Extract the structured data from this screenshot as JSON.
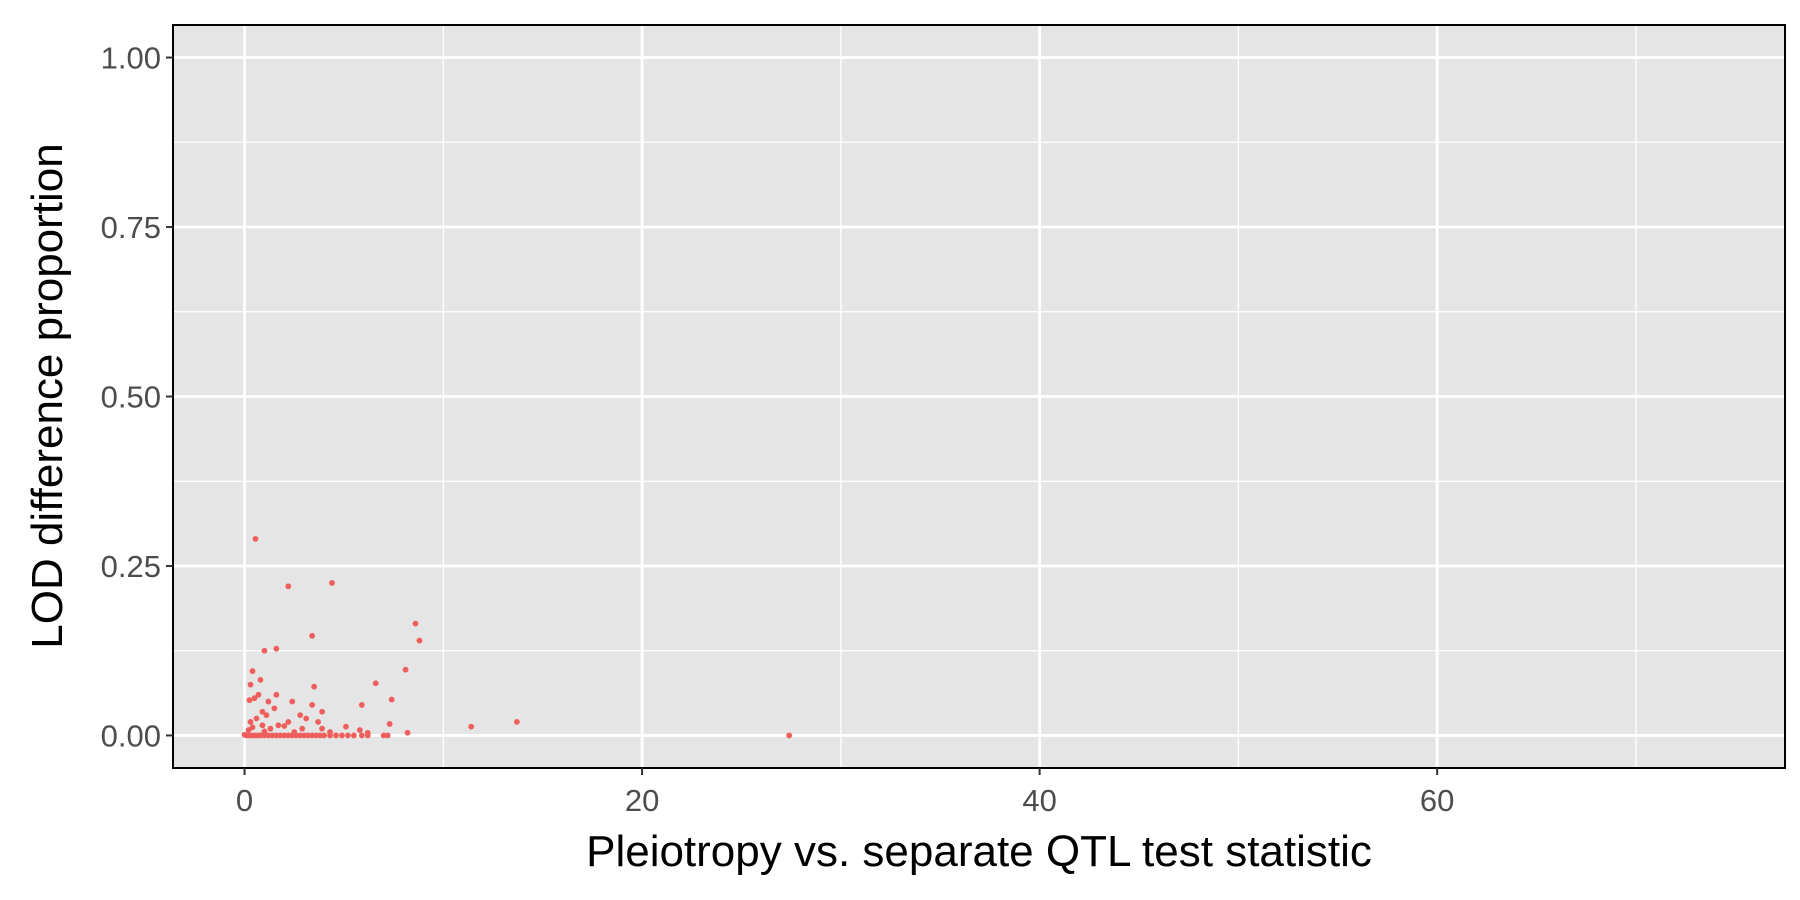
{
  "chart_data": {
    "type": "scatter",
    "title": "",
    "xlabel": "Pleiotropy vs. separate QTL test statistic",
    "ylabel": "LOD difference proportion",
    "xlim": [
      -3.6,
      77.5
    ],
    "ylim": [
      -0.048,
      1.048
    ],
    "x_ticks": [
      0,
      20,
      40,
      60
    ],
    "x_tick_labels": [
      "0",
      "20",
      "40",
      "60"
    ],
    "x_minor_ticks": [
      10,
      30,
      50,
      70
    ],
    "y_ticks": [
      0,
      0.25,
      0.5,
      0.75,
      1
    ],
    "y_tick_labels": [
      "0.00",
      "0.25",
      "0.50",
      "0.75",
      "1.00"
    ],
    "y_minor_ticks": [
      0.125,
      0.375,
      0.625,
      0.875
    ],
    "grid": true,
    "legend": "none",
    "colors": {
      "panel": "#e5e5e5",
      "grid": "#ffffff",
      "point": "#ee5f5b",
      "border": "#000000",
      "tick_text": "#4d4d4d"
    },
    "series": [
      {
        "points": [
          [
            0.55,
            0.29
          ],
          [
            4.4,
            0.225
          ],
          [
            2.2,
            0.22
          ],
          [
            3.4,
            0.147
          ],
          [
            8.6,
            0.165
          ],
          [
            8.8,
            0.14
          ],
          [
            1.6,
            0.128
          ],
          [
            1.0,
            0.125
          ],
          [
            0.4,
            0.095
          ],
          [
            8.1,
            0.097
          ],
          [
            0.8,
            0.082
          ],
          [
            6.6,
            0.077
          ],
          [
            0.3,
            0.075
          ],
          [
            3.5,
            0.072
          ],
          [
            1.6,
            0.06
          ],
          [
            0.7,
            0.06
          ],
          [
            0.5,
            0.055
          ],
          [
            0.25,
            0.052
          ],
          [
            1.2,
            0.05
          ],
          [
            2.4,
            0.05
          ],
          [
            7.4,
            0.053
          ],
          [
            5.9,
            0.045
          ],
          [
            3.4,
            0.045
          ],
          [
            1.5,
            0.04
          ],
          [
            0.9,
            0.035
          ],
          [
            3.9,
            0.035
          ],
          [
            1.1,
            0.03
          ],
          [
            2.8,
            0.03
          ],
          [
            0.6,
            0.025
          ],
          [
            3.1,
            0.025
          ],
          [
            0.3,
            0.02
          ],
          [
            2.2,
            0.02
          ],
          [
            3.7,
            0.02
          ],
          [
            13.7,
            0.02
          ],
          [
            7.3,
            0.017
          ],
          [
            0.9,
            0.015
          ],
          [
            1.7,
            0.015
          ],
          [
            2.0,
            0.014
          ],
          [
            11.4,
            0.013
          ],
          [
            5.1,
            0.013
          ],
          [
            0.4,
            0.012
          ],
          [
            1.3,
            0.01
          ],
          [
            2.9,
            0.01
          ],
          [
            3.9,
            0.01
          ],
          [
            5.8,
            0.008
          ],
          [
            0.2,
            0.008
          ],
          [
            1.0,
            0.006
          ],
          [
            2.5,
            0.005
          ],
          [
            4.3,
            0.005
          ],
          [
            6.2,
            0.004
          ],
          [
            8.2,
            0.004
          ],
          [
            0.0,
            0.001
          ],
          [
            0.1,
            0.0
          ],
          [
            0.2,
            0.0
          ],
          [
            0.35,
            0.0
          ],
          [
            0.5,
            0.0
          ],
          [
            0.65,
            0.0
          ],
          [
            0.8,
            0.0
          ],
          [
            1.0,
            0.0
          ],
          [
            1.2,
            0.0
          ],
          [
            1.4,
            0.0
          ],
          [
            1.6,
            0.0
          ],
          [
            1.8,
            0.0
          ],
          [
            2.0,
            0.0
          ],
          [
            2.2,
            0.0
          ],
          [
            2.4,
            0.0
          ],
          [
            2.6,
            0.0
          ],
          [
            2.8,
            0.0
          ],
          [
            3.0,
            0.0
          ],
          [
            3.2,
            0.0
          ],
          [
            3.4,
            0.0
          ],
          [
            3.6,
            0.0
          ],
          [
            3.8,
            0.0
          ],
          [
            4.0,
            0.0
          ],
          [
            4.3,
            0.0
          ],
          [
            4.6,
            0.0
          ],
          [
            4.9,
            0.0
          ],
          [
            5.2,
            0.0
          ],
          [
            5.5,
            0.0
          ],
          [
            5.9,
            0.0
          ],
          [
            6.2,
            0.0
          ],
          [
            7.0,
            0.0
          ],
          [
            7.2,
            0.0
          ],
          [
            27.4,
            0.0
          ]
        ]
      }
    ]
  }
}
